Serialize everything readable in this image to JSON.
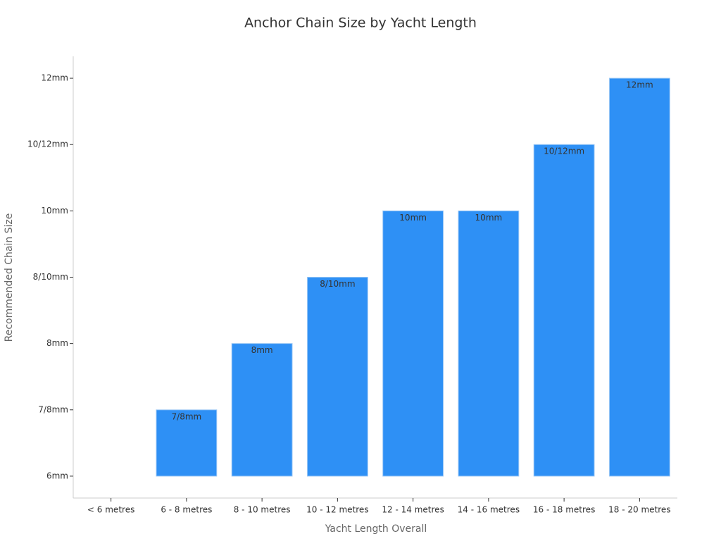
{
  "chart_data": {
    "type": "bar",
    "title": "Anchor Chain Size by Yacht Length",
    "xlabel": "Yacht Length Overall",
    "ylabel": "Recommended Chain Size",
    "categories": [
      "< 6 metres",
      "6 - 8 metres",
      "8 - 10 metres",
      "10 - 12 metres",
      "12 - 14 metres",
      "14 - 16 metres",
      "16 - 18 metres",
      "18 - 20 metres"
    ],
    "values": [
      null,
      1,
      2,
      3,
      4,
      4,
      5,
      6
    ],
    "value_labels": [
      null,
      "7/8mm",
      "8mm",
      "8/10mm",
      "10mm",
      "10mm",
      "10/12mm",
      "12mm"
    ],
    "color": "#2e90f5",
    "ylim": [
      -0.33,
      6.33
    ],
    "yticks": [
      {
        "value": 0,
        "label": "6mm"
      },
      {
        "value": 1,
        "label": "7/8mm"
      },
      {
        "value": 2,
        "label": "8mm"
      },
      {
        "value": 3,
        "label": "8/10mm"
      },
      {
        "value": 4,
        "label": "10mm"
      },
      {
        "value": 5,
        "label": "10/12mm"
      },
      {
        "value": 6,
        "label": "12mm"
      }
    ],
    "grid": false
  }
}
